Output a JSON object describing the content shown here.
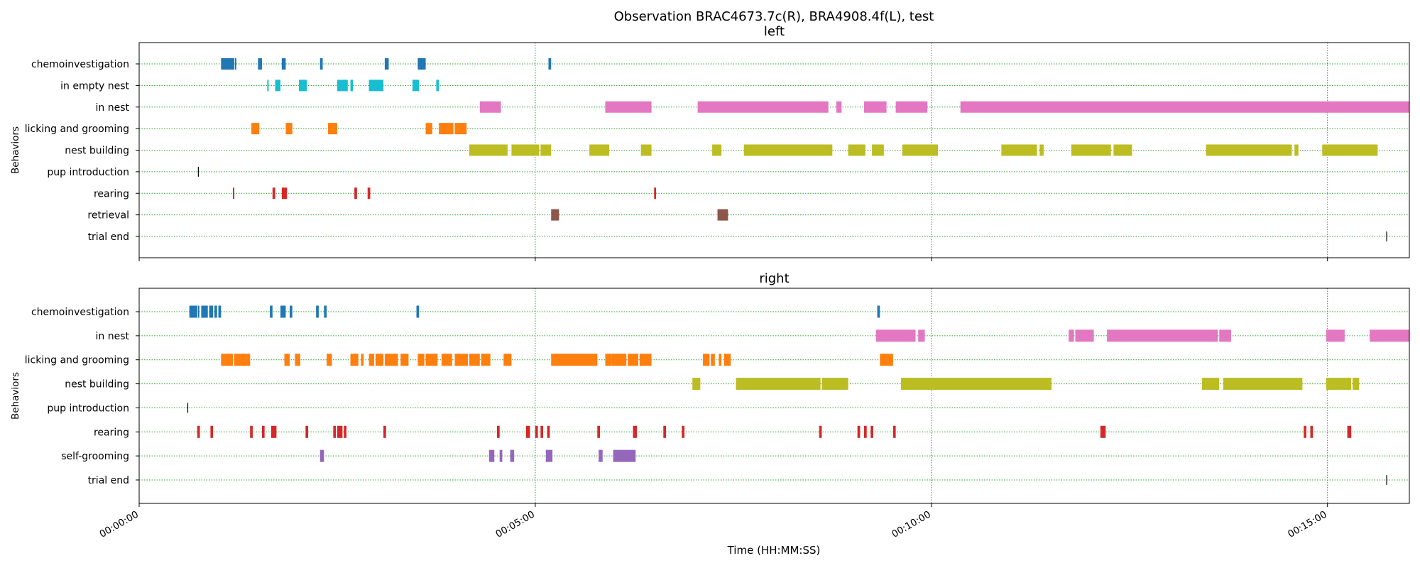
{
  "figure": {
    "title": "Observation BRAC4673.7c(R), BRA4908.4f(L), test",
    "xlabel": "Time (HH:MM:SS)"
  },
  "chart_data": {
    "type": "ethogram",
    "title": "Observation BRAC4673.7c(R), BRA4908.4f(L), test",
    "x_unit": "seconds",
    "xlim": [
      0,
      962
    ],
    "x_ticks": [
      {
        "value": 0,
        "label": "00:00:00"
      },
      {
        "value": 300,
        "label": "00:05:00"
      },
      {
        "value": 600,
        "label": "00:10:00"
      },
      {
        "value": 900,
        "label": "00:15:00"
      }
    ],
    "grid": true,
    "panels": [
      {
        "name": "left",
        "ylabel": "Behaviors",
        "behaviors": [
          {
            "name": "chemoinvestigation",
            "color": "#1f77b4",
            "intervals": [
              [
                62,
                72
              ],
              [
                72.5,
                73.5
              ],
              [
                90,
                93
              ],
              [
                108,
                111
              ],
              [
                137,
                139
              ],
              [
                186,
                189
              ],
              [
                211,
                217
              ],
              [
                310,
                312
              ]
            ]
          },
          {
            "name": "in empty nest",
            "color": "#17becf",
            "intervals": [
              [
                97,
                98
              ],
              [
                103,
                107
              ],
              [
                121,
                127
              ],
              [
                150,
                158
              ],
              [
                160,
                162
              ],
              [
                174,
                185
              ],
              [
                207,
                212
              ],
              [
                225,
                227
              ]
            ]
          },
          {
            "name": "in nest",
            "color": "#e377c2",
            "intervals": [
              [
                258,
                274
              ],
              [
                353,
                388
              ],
              [
                423,
                522
              ],
              [
                528,
                532
              ],
              [
                549,
                566
              ],
              [
                573,
                597
              ],
              [
                622,
                962
              ]
            ]
          },
          {
            "name": "licking and grooming",
            "color": "#ff7f0e",
            "intervals": [
              [
                85,
                91
              ],
              [
                111,
                116
              ],
              [
                143,
                150
              ],
              [
                217,
                222
              ],
              [
                227,
                238
              ],
              [
                239,
                248
              ]
            ]
          },
          {
            "name": "nest building",
            "color": "#bcbd22",
            "intervals": [
              [
                250,
                279
              ],
              [
                282,
                303
              ],
              [
                304,
                312
              ],
              [
                341,
                356
              ],
              [
                380,
                388
              ],
              [
                434,
                441
              ],
              [
                458,
                525
              ],
              [
                537,
                550
              ],
              [
                555,
                564
              ],
              [
                578,
                605
              ],
              [
                653,
                680
              ],
              [
                682,
                685
              ],
              [
                706,
                736
              ],
              [
                738,
                752
              ],
              [
                808,
                873
              ],
              [
                875,
                878
              ],
              [
                896,
                938
              ]
            ]
          },
          {
            "name": "pup introduction",
            "color": "#000000",
            "intervals": [
              [
                44.5,
                45.5
              ]
            ]
          },
          {
            "name": "rearing",
            "color": "#d62728",
            "intervals": [
              [
                71,
                72
              ],
              [
                101,
                103
              ],
              [
                108,
                112
              ],
              [
                163,
                165
              ],
              [
                173,
                175
              ],
              [
                390,
                391.5
              ]
            ]
          },
          {
            "name": "retrieval",
            "color": "#8c564b",
            "intervals": [
              [
                312,
                318
              ],
              [
                438,
                446
              ]
            ]
          },
          {
            "name": "trial end",
            "color": "#000000",
            "intervals": [
              [
                944.5,
                945.5
              ]
            ]
          }
        ]
      },
      {
        "name": "right",
        "ylabel": "Behaviors",
        "behaviors": [
          {
            "name": "chemoinvestigation",
            "color": "#1f77b4",
            "intervals": [
              [
                38,
                44
              ],
              [
                44.5,
                45.5
              ],
              [
                47,
                52
              ],
              [
                53,
                56
              ],
              [
                57,
                59
              ],
              [
                60,
                62
              ],
              [
                99,
                101
              ],
              [
                107,
                111
              ],
              [
                114,
                116
              ],
              [
                134,
                136
              ],
              [
                140,
                142
              ],
              [
                210,
                212
              ],
              [
                559,
                561
              ]
            ]
          },
          {
            "name": "in nest",
            "color": "#e377c2",
            "intervals": [
              [
                558,
                588
              ],
              [
                590,
                595
              ],
              [
                704,
                708
              ],
              [
                709,
                723
              ],
              [
                733,
                817
              ],
              [
                818,
                827
              ],
              [
                899,
                913
              ],
              [
                932,
                962
              ]
            ]
          },
          {
            "name": "licking and grooming",
            "color": "#ff7f0e",
            "intervals": [
              [
                62,
                71
              ],
              [
                72,
                84
              ],
              [
                110,
                114
              ],
              [
                118,
                122
              ],
              [
                142,
                146
              ],
              [
                160,
                166
              ],
              [
                168,
                170
              ],
              [
                174,
                178
              ],
              [
                179,
                185
              ],
              [
                186,
                196
              ],
              [
                198,
                204
              ],
              [
                211,
                216
              ],
              [
                217,
                226
              ],
              [
                229,
                237
              ],
              [
                239,
                249
              ],
              [
                250,
                258
              ],
              [
                259,
                266
              ],
              [
                276,
                282
              ],
              [
                312,
                347
              ],
              [
                353,
                358
              ],
              [
                358,
                360
              ],
              [
                360,
                369
              ],
              [
                370,
                378
              ],
              [
                379,
                388
              ],
              [
                427,
                432
              ],
              [
                433,
                436
              ],
              [
                439,
                441
              ],
              [
                443,
                448
              ],
              [
                561,
                571
              ]
            ]
          },
          {
            "name": "nest building",
            "color": "#bcbd22",
            "intervals": [
              [
                419,
                425
              ],
              [
                452,
                516
              ],
              [
                517,
                537
              ],
              [
                577,
                691
              ],
              [
                805,
                818
              ],
              [
                821,
                881
              ],
              [
                899,
                918
              ],
              [
                919,
                924
              ]
            ]
          },
          {
            "name": "pup introduction",
            "color": "#000000",
            "intervals": [
              [
                36.5,
                37.5
              ]
            ]
          },
          {
            "name": "rearing",
            "color": "#d62728",
            "intervals": [
              [
                44,
                46
              ],
              [
                54,
                56
              ],
              [
                84,
                86
              ],
              [
                93,
                95
              ],
              [
                100,
                104
              ],
              [
                126,
                128
              ],
              [
                147,
                149
              ],
              [
                150,
                154
              ],
              [
                155,
                157
              ],
              [
                185,
                187
              ],
              [
                271,
                273
              ],
              [
                293,
                296
              ],
              [
                300,
                302
              ],
              [
                304,
                306
              ],
              [
                309,
                311
              ],
              [
                347,
                349
              ],
              [
                374,
                377
              ],
              [
                397,
                399
              ],
              [
                411,
                413
              ],
              [
                515,
                517
              ],
              [
                544,
                546
              ],
              [
                549,
                551
              ],
              [
                554,
                556
              ],
              [
                571,
                573
              ],
              [
                728,
                732
              ],
              [
                882,
                884
              ],
              [
                887,
                889
              ],
              [
                915,
                918
              ]
            ]
          },
          {
            "name": "self-grooming",
            "color": "#9467bd",
            "intervals": [
              [
                137,
                140
              ],
              [
                265,
                269
              ],
              [
                273,
                275
              ],
              [
                281,
                284
              ],
              [
                308,
                313
              ],
              [
                348,
                351
              ],
              [
                359,
                376
              ]
            ]
          },
          {
            "name": "trial end",
            "color": "#000000",
            "intervals": [
              [
                944.5,
                945.5
              ]
            ]
          }
        ]
      }
    ]
  }
}
